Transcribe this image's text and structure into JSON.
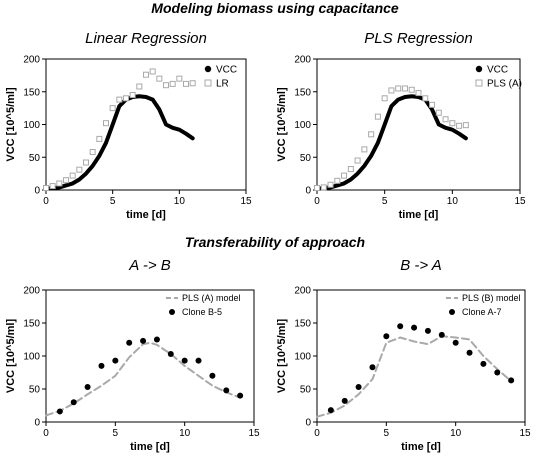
{
  "sections": {
    "top_title": "Modeling biomass using capacitance",
    "bottom_title": "Transferability of approach"
  },
  "chart_data": [
    {
      "type": "line",
      "title": "Linear Regression",
      "xlabel": "time [d]",
      "ylabel": "VCC [10^5/ml]",
      "xlim": [
        0,
        15
      ],
      "ylim": [
        0,
        200
      ],
      "xticks": [
        "0",
        "5",
        "10",
        "15"
      ],
      "yticks": [
        "0",
        "50",
        "100",
        "150",
        "200"
      ],
      "legend_position": "top-right",
      "series": [
        {
          "name": "VCC",
          "style": "line",
          "color": "#000000",
          "x": [
            0,
            1,
            2,
            2.5,
            3,
            3.5,
            4,
            4.5,
            5,
            5.5,
            6,
            6.5,
            7,
            7.5,
            8,
            8.5,
            9,
            9.5,
            10,
            10.5,
            11
          ],
          "y": [
            2,
            4,
            10,
            16,
            25,
            37,
            52,
            72,
            100,
            128,
            138,
            142,
            143,
            142,
            138,
            123,
            100,
            95,
            92,
            86,
            79
          ]
        },
        {
          "name": "LR",
          "style": "squares",
          "color": "#a9a9a9",
          "x": [
            0,
            0.5,
            1,
            1.5,
            2,
            2.5,
            3,
            3.5,
            4,
            4.5,
            5,
            5.5,
            6,
            6.5,
            7,
            7.5,
            8,
            8.5,
            9,
            9.5,
            10,
            10.5,
            11
          ],
          "y": [
            3,
            6,
            10,
            15,
            22,
            31,
            42,
            58,
            78,
            102,
            125,
            138,
            140,
            145,
            158,
            176,
            181,
            170,
            160,
            162,
            170,
            162,
            163
          ]
        }
      ]
    },
    {
      "type": "line",
      "title": "PLS Regression",
      "xlabel": "time [d]",
      "ylabel": "VCC [10^5/ml]",
      "xlim": [
        0,
        15
      ],
      "ylim": [
        0,
        200
      ],
      "xticks": [
        "0",
        "5",
        "10",
        "15"
      ],
      "yticks": [
        "0",
        "50",
        "100",
        "150",
        "200"
      ],
      "legend_position": "top-right",
      "series": [
        {
          "name": "VCC",
          "style": "line",
          "color": "#000000",
          "x": [
            0,
            1,
            2,
            2.5,
            3,
            3.5,
            4,
            4.5,
            5,
            5.5,
            6,
            6.5,
            7,
            7.5,
            8,
            8.5,
            9,
            9.5,
            10,
            10.5,
            11
          ],
          "y": [
            2,
            4,
            10,
            16,
            25,
            37,
            52,
            72,
            100,
            128,
            138,
            142,
            143,
            142,
            138,
            123,
            100,
            95,
            92,
            86,
            79
          ]
        },
        {
          "name": "PLS (A)",
          "style": "squares",
          "color": "#a9a9a9",
          "x": [
            0,
            0.5,
            1,
            1.5,
            2,
            2.5,
            3,
            3.5,
            4,
            4.5,
            5,
            5.5,
            6,
            6.5,
            7,
            7.5,
            8,
            8.5,
            9,
            9.5,
            10,
            10.5,
            11
          ],
          "y": [
            3,
            4,
            8,
            14,
            22,
            32,
            45,
            62,
            85,
            112,
            140,
            152,
            155,
            155,
            153,
            148,
            140,
            130,
            118,
            108,
            102,
            98,
            99
          ]
        }
      ]
    },
    {
      "type": "scatter",
      "title": "A -> B",
      "xlabel": "time [d]",
      "ylabel": "VCC [10^5/ml]",
      "xlim": [
        0,
        15
      ],
      "ylim": [
        0,
        200
      ],
      "xticks": [
        "0",
        "5",
        "10",
        "15"
      ],
      "yticks": [
        "0",
        "50",
        "100",
        "150",
        "200"
      ],
      "legend_position": "top-right",
      "series": [
        {
          "name": "PLS (A) model",
          "style": "dashed",
          "color": "#a9a9a9",
          "x": [
            0,
            1,
            2,
            3,
            4,
            5,
            6,
            7,
            7.5,
            8,
            9,
            10,
            11,
            12,
            13,
            14
          ],
          "y": [
            10,
            17,
            28,
            42,
            55,
            70,
            98,
            118,
            120,
            117,
            103,
            85,
            70,
            55,
            45,
            37
          ]
        },
        {
          "name": "Clone B-5",
          "style": "dots",
          "color": "#000000",
          "x": [
            1,
            2,
            3,
            4,
            5,
            6,
            7,
            8,
            9,
            10,
            11,
            12,
            13,
            14
          ],
          "y": [
            16,
            30,
            53,
            85,
            93,
            120,
            123,
            125,
            103,
            93,
            93,
            70,
            48,
            40
          ]
        }
      ]
    },
    {
      "type": "scatter",
      "title": "B -> A",
      "xlabel": "time [d]",
      "ylabel": "VCC [10^5/ml]",
      "xlim": [
        0,
        15
      ],
      "ylim": [
        0,
        200
      ],
      "xticks": [
        "0",
        "5",
        "10",
        "15"
      ],
      "yticks": [
        "0",
        "50",
        "100",
        "150",
        "200"
      ],
      "legend_position": "top-right",
      "series": [
        {
          "name": "PLS (B) model",
          "style": "dashed",
          "color": "#a9a9a9",
          "x": [
            0,
            1,
            2,
            3,
            4,
            5,
            6,
            7,
            8,
            9,
            10,
            11,
            12,
            13,
            14
          ],
          "y": [
            8,
            14,
            25,
            42,
            65,
            120,
            128,
            122,
            118,
            130,
            128,
            125,
            100,
            80,
            62
          ]
        },
        {
          "name": "Clone A-7",
          "style": "dots",
          "color": "#000000",
          "x": [
            1,
            2,
            3,
            4,
            5,
            6,
            7,
            8,
            9,
            10,
            11,
            12,
            13,
            14
          ],
          "y": [
            18,
            32,
            53,
            83,
            130,
            145,
            143,
            138,
            132,
            120,
            105,
            88,
            75,
            63
          ]
        }
      ]
    }
  ]
}
